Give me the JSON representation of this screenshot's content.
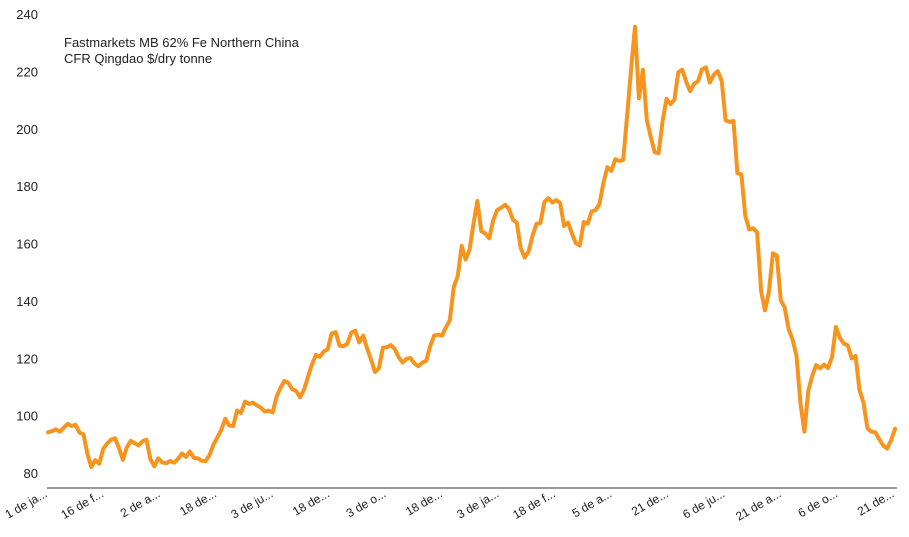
{
  "chart_data": {
    "type": "line",
    "title": "",
    "xlabel": "",
    "ylabel": "",
    "ylim": [
      80,
      240
    ],
    "yticks": [
      80,
      100,
      120,
      140,
      160,
      180,
      200,
      220,
      240
    ],
    "grid": false,
    "legend": "none",
    "annotation": [
      "Fastmarkets MB 62% Fe Northern China",
      "CFR Qingdao $/dry tonne"
    ],
    "xtick_labels": [
      "1 de ja...",
      "16 de f...",
      "2 de a...",
      "18 de...",
      "3 de ju...",
      "18 de...",
      "3 de o...",
      "18 de...",
      "3 de ja...",
      "18 de f...",
      "5 de a...",
      "21 de...",
      "6 de ju...",
      "21 de a...",
      "6 de o...",
      "21 de..."
    ],
    "line_color": "#f7941d",
    "series": [
      {
        "values": [
          94.2,
          94.6,
          95.2,
          94.4,
          95.8,
          97.1,
          96.4,
          96.8,
          94.1,
          93.5,
          86.7,
          82.1,
          84.5,
          83.2,
          88.4,
          90.3,
          91.6,
          92.1,
          88.7,
          84.6,
          88.9,
          91.2,
          90.4,
          89.6,
          91.1,
          91.6,
          84.8,
          82.3,
          85.1,
          83.7,
          83.4,
          84.2,
          83.6,
          84.9,
          86.8,
          85.6,
          87.5,
          85.3,
          85.1,
          84.3,
          84.1,
          86.2,
          89.9,
          92.4,
          95.1,
          98.9,
          96.6,
          96.4,
          101.8,
          100.9,
          104.9,
          104.1,
          104.5,
          103.6,
          102.8,
          101.4,
          101.8,
          101.1,
          106.5,
          109.7,
          112.1,
          111.4,
          109.2,
          108.6,
          106.4,
          109.1,
          113.5,
          117.8,
          121.2,
          120.5,
          122.4,
          123.1,
          128.6,
          129.1,
          124.4,
          124.2,
          125.1,
          128.9,
          129.6,
          125.5,
          127.9,
          123.4,
          119.6,
          115.2,
          116.5,
          123.7,
          123.8,
          124.6,
          123.3,
          120.4,
          118.5,
          119.8,
          120.1,
          118.2,
          117.2,
          118.5,
          119.1,
          124.1,
          127.9,
          128.2,
          127.9,
          130.8,
          133.2,
          144.9,
          148.6,
          159.2,
          154.4,
          157.8,
          166.9,
          174.8,
          164.3,
          163.5,
          161.8,
          168.1,
          171.6,
          172.4,
          173.5,
          172.1,
          168.3,
          167.2,
          158.4,
          155.1,
          157.2,
          162.8,
          166.9,
          167.1,
          174.5,
          175.8,
          174.3,
          175.1,
          174.2,
          166.1,
          167.3,
          163.4,
          160.1,
          159.3,
          167.5,
          166.9,
          171.2,
          171.6,
          173.8,
          181.3,
          186.6,
          185.3,
          189.4,
          188.8,
          189.1,
          204.4,
          220.9,
          235.5,
          210.6,
          220.5,
          203.1,
          197.2,
          191.8,
          191.5,
          202.7,
          210.4,
          208.6,
          210.1,
          219.7,
          220.6,
          216.4,
          213.1,
          215.7,
          216.5,
          220.7,
          221.4,
          216.1,
          218.8,
          220.1,
          216.7,
          202.9,
          202.4,
          202.7,
          184.5,
          184.1,
          169.6,
          164.9,
          165.3,
          163.9,
          143.4,
          136.7,
          143.2,
          156.6,
          155.8,
          140.2,
          137.7,
          130.2,
          126.5,
          120.8,
          104.2,
          94.4,
          108.8,
          113.9,
          117.6,
          116.5,
          117.8,
          116.6,
          120.4,
          130.9,
          127.2,
          125.1,
          124.6,
          119.9,
          120.8,
          108.9,
          104.5,
          95.6,
          94.4,
          94.2,
          91.8,
          89.6,
          88.5,
          91.4,
          95.4
        ]
      }
    ]
  }
}
